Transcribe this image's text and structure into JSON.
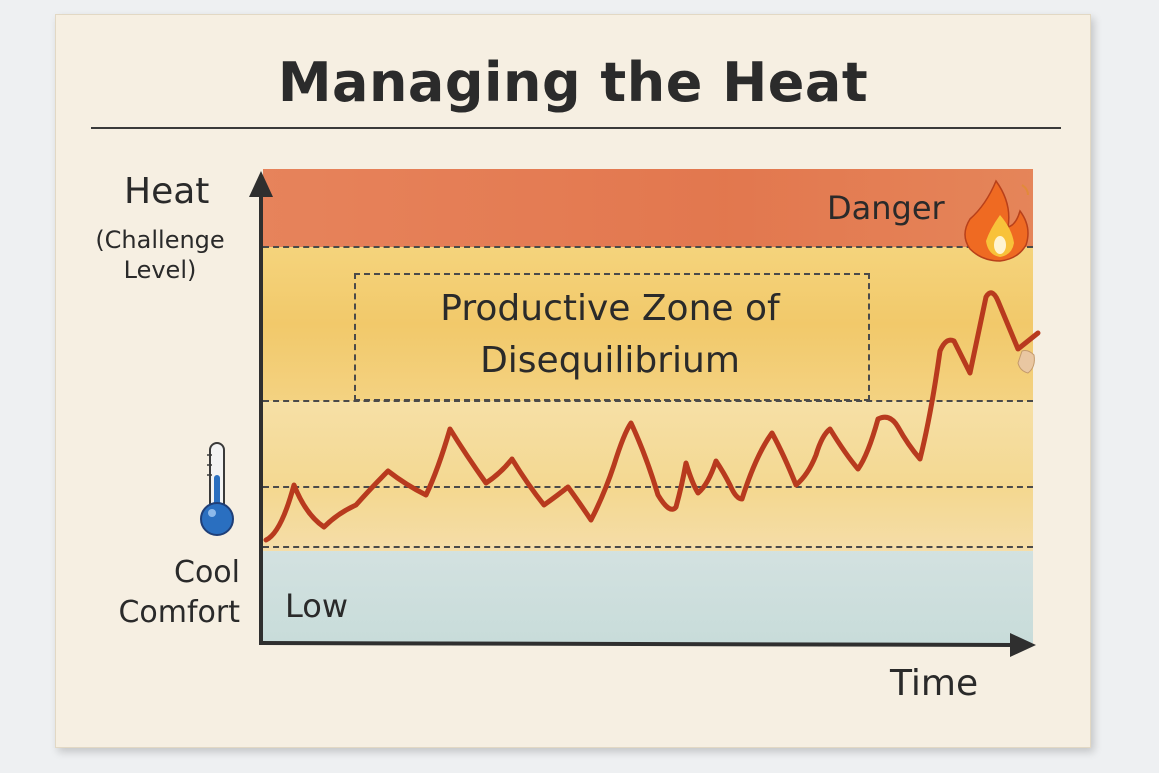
{
  "title": "Managing the Heat",
  "y_axis": {
    "title": "Heat",
    "subtitle_line1": "(Challenge",
    "subtitle_line2": "Level)"
  },
  "x_axis": {
    "title": "Time"
  },
  "zones": {
    "danger": "Danger",
    "productive_line1": "Productive Zone of",
    "productive_line2": "Disequilibrium",
    "low": "Low"
  },
  "cool_label": {
    "line1": "Cool",
    "line2": "Comfort"
  },
  "icons": {
    "thermometer": "thermometer-icon",
    "fire": "fire-icon"
  },
  "colors": {
    "danger": "#e06a3e",
    "productive": "#f1c255",
    "cool": "#c3dad9",
    "line": "#b83a1e"
  }
}
